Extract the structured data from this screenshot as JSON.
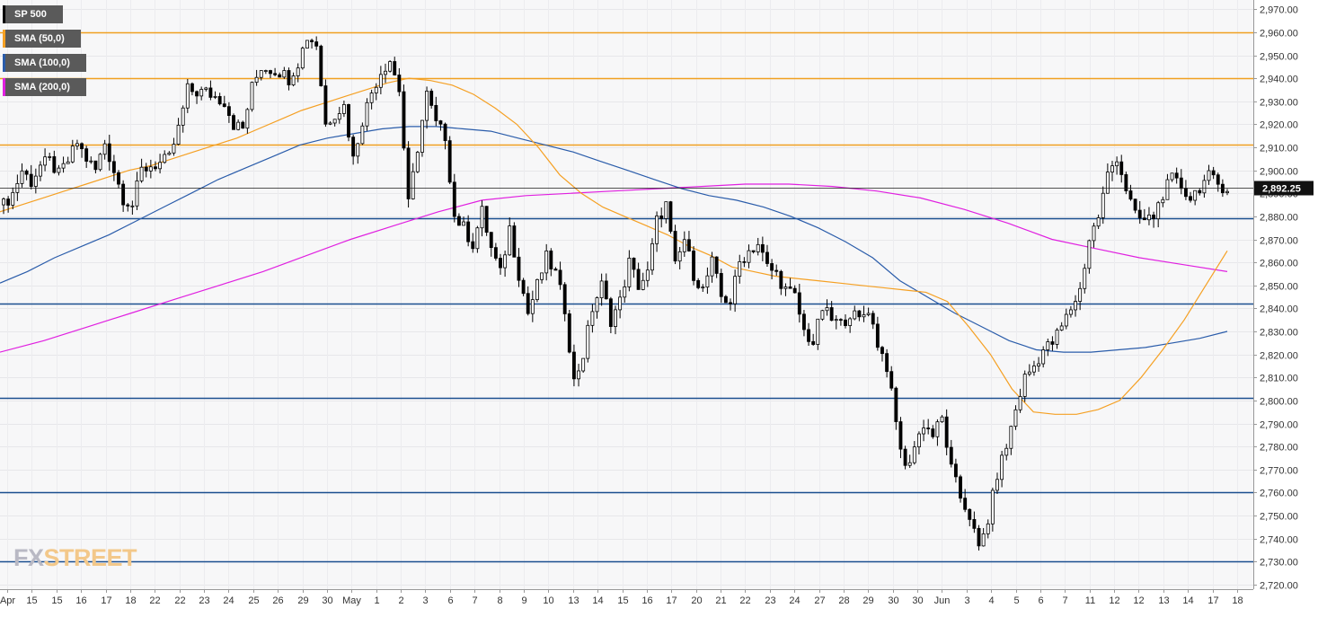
{
  "chart_data": {
    "type": "candlestick",
    "symbol": "SP 500",
    "last_price_label": "2,892.25",
    "y_ticks": [
      "2,970.00",
      "2,960.00",
      "2,950.00",
      "2,940.00",
      "2,930.00",
      "2,920.00",
      "2,910.00",
      "2,900.00",
      "2,890.00",
      "2,880.00",
      "2,870.00",
      "2,860.00",
      "2,850.00",
      "2,840.00",
      "2,830.00",
      "2,820.00",
      "2,810.00",
      "2,800.00",
      "2,790.00",
      "2,780.00",
      "2,770.00",
      "2,760.00",
      "2,750.00",
      "2,740.00",
      "2,730.00",
      "2,720.00"
    ],
    "ylim": [
      2718,
      2974
    ],
    "x_ticks": [
      "Apr",
      "15",
      "15",
      "16",
      "17",
      "18",
      "22",
      "22",
      "23",
      "24",
      "25",
      "26",
      "29",
      "30",
      "May",
      "1",
      "2",
      "3",
      "6",
      "7",
      "8",
      "9",
      "10",
      "13",
      "14",
      "15",
      "16",
      "17",
      "20",
      "21",
      "22",
      "23",
      "24",
      "27",
      "28",
      "29",
      "30",
      "30",
      "Jun",
      "3",
      "4",
      "5",
      "6",
      "7",
      "11",
      "12",
      "12",
      "13",
      "14",
      "17",
      "18"
    ],
    "legend": [
      {
        "label": "SP 500",
        "color": "#000000"
      },
      {
        "label": "SMA (50,0)",
        "color": "#f5a023"
      },
      {
        "label": "SMA (100,0)",
        "color": "#2a5caa"
      },
      {
        "label": "SMA (200,0)",
        "color": "#e020e0"
      }
    ],
    "horizontal_levels": [
      {
        "value": 2960,
        "color": "#f0a020"
      },
      {
        "value": 2940,
        "color": "#f0a020"
      },
      {
        "value": 2911,
        "color": "#f0a020"
      },
      {
        "value": 2879,
        "color": "#1a4f8f"
      },
      {
        "value": 2842,
        "color": "#1a4f8f"
      },
      {
        "value": 2801,
        "color": "#1a4f8f"
      },
      {
        "value": 2760,
        "color": "#1a4f8f"
      },
      {
        "value": 2730,
        "color": "#1a4f8f"
      }
    ],
    "price_path": [
      2885,
      2890,
      2900,
      2895,
      2902,
      2904,
      2898,
      2904,
      2912,
      2905,
      2900,
      2912,
      2900,
      2888,
      2885,
      2900,
      2902,
      2903,
      2905,
      2918,
      2935,
      2934,
      2934,
      2932,
      2930,
      2920,
      2918,
      2936,
      2945,
      2944,
      2943,
      2940,
      2947,
      2958,
      2955,
      2920,
      2925,
      2928,
      2905,
      2922,
      2934,
      2943,
      2948,
      2935,
      2885,
      2910,
      2933,
      2920,
      2915,
      2880,
      2875,
      2868,
      2882,
      2866,
      2855,
      2875,
      2855,
      2838,
      2850,
      2862,
      2855,
      2840,
      2808,
      2820,
      2840,
      2850,
      2835,
      2843,
      2860,
      2850,
      2855,
      2878,
      2885,
      2858,
      2870,
      2855,
      2848,
      2860,
      2845,
      2843,
      2860,
      2865,
      2868,
      2858,
      2855,
      2848,
      2845,
      2830,
      2825,
      2840,
      2835,
      2833,
      2838,
      2835,
      2840,
      2825,
      2815,
      2790,
      2770,
      2780,
      2790,
      2785,
      2792,
      2770,
      2758,
      2750,
      2735,
      2748,
      2768,
      2780,
      2796,
      2810,
      2815,
      2822,
      2825,
      2832,
      2840,
      2848,
      2870,
      2880,
      2898,
      2906,
      2892,
      2880,
      2878,
      2880,
      2890,
      2896,
      2893,
      2888,
      2893,
      2897,
      2894,
      2892.25
    ],
    "sma50": [
      2882,
      2885,
      2888,
      2891,
      2894,
      2897,
      2900,
      2902,
      2905,
      2908,
      2911,
      2914,
      2918,
      2922,
      2926,
      2929,
      2932,
      2935,
      2938,
      2940,
      2939,
      2937,
      2933,
      2927,
      2920,
      2910,
      2898,
      2890,
      2884,
      2880,
      2876,
      2872,
      2867,
      2863,
      2858,
      2856,
      2854,
      2853,
      2852,
      2851,
      2850,
      2849,
      2848,
      2847,
      2843,
      2832,
      2820,
      2805,
      2795,
      2794,
      2794,
      2796,
      2800,
      2810,
      2822,
      2835,
      2850,
      2865
    ],
    "sma100": [
      2851,
      2856,
      2862,
      2867,
      2872,
      2878,
      2884,
      2890,
      2896,
      2901,
      2906,
      2911,
      2914,
      2916,
      2918,
      2919,
      2919,
      2918,
      2917,
      2914,
      2911,
      2908,
      2904,
      2900,
      2896,
      2892,
      2889,
      2887,
      2884,
      2880,
      2875,
      2869,
      2862,
      2852,
      2845,
      2838,
      2832,
      2826,
      2822,
      2821,
      2821,
      2822,
      2823,
      2825,
      2827,
      2830
    ],
    "sma200": [
      2821,
      2826,
      2832,
      2838,
      2844,
      2850,
      2856,
      2863,
      2870,
      2876,
      2882,
      2887,
      2889,
      2890,
      2891,
      2892,
      2893,
      2894,
      2894,
      2893,
      2891,
      2888,
      2883,
      2877,
      2870,
      2866,
      2862,
      2859,
      2856
    ]
  },
  "watermark": {
    "part1": "FX",
    "part2": "STREET"
  }
}
